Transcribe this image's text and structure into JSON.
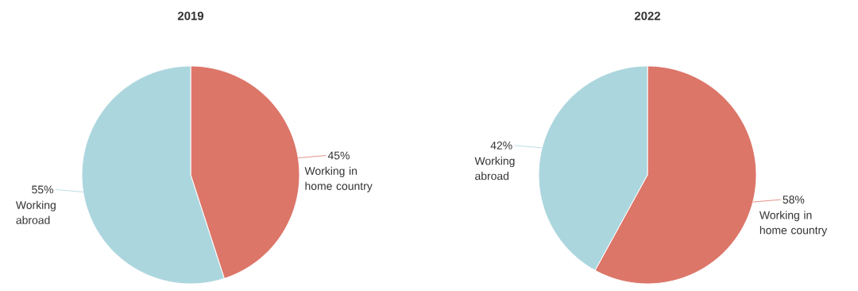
{
  "chart_data": [
    {
      "type": "pie",
      "title": "2019",
      "categories": [
        "Working in home country",
        "Working abroad"
      ],
      "values": [
        45,
        55
      ],
      "colors": [
        "#dc7669",
        "#acd6de"
      ],
      "value_labels": [
        "45%",
        "55%"
      ]
    },
    {
      "type": "pie",
      "title": "2022",
      "categories": [
        "Working in home country",
        "Working abroad"
      ],
      "values": [
        58,
        42
      ],
      "colors": [
        "#dc7669",
        "#acd6de"
      ],
      "value_labels": [
        "58%",
        "42%"
      ]
    }
  ]
}
